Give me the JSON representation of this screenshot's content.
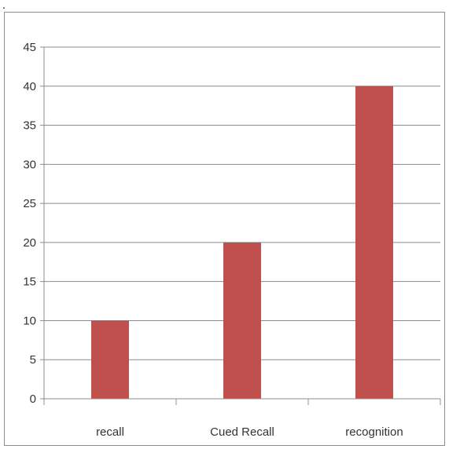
{
  "page": {
    "stray_mark": "."
  },
  "chart_data": {
    "type": "bar",
    "categories": [
      "recall",
      "Cued Recall",
      "recognition"
    ],
    "values": [
      10,
      20,
      40
    ],
    "ylim": [
      0,
      45
    ],
    "yticks": [
      0,
      5,
      10,
      15,
      20,
      25,
      30,
      35,
      40,
      45
    ],
    "title": "",
    "xlabel": "",
    "ylabel": "",
    "grid": true,
    "legend": "none",
    "bar_color": "#c0504d",
    "grid_color": "#8c8c8c"
  }
}
